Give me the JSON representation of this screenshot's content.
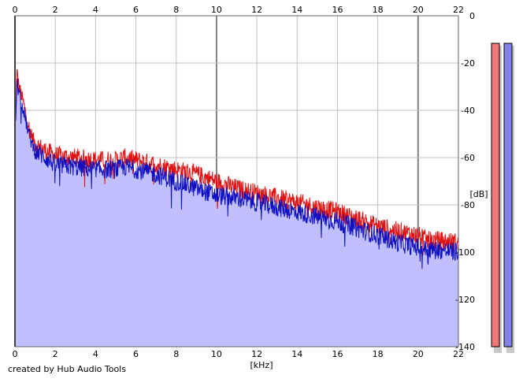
{
  "credit": "created by Hub Audio Tools",
  "chart_data": {
    "type": "area",
    "title": "",
    "xlabel": "[kHz]",
    "ylabel": "[dB]",
    "xlim": [
      0,
      22
    ],
    "ylim": [
      -140,
      0
    ],
    "x_ticks": [
      "0",
      "2",
      "4",
      "6",
      "8",
      "10",
      "12",
      "14",
      "16",
      "18",
      "20",
      "22"
    ],
    "y_ticks": [
      "0",
      "-20",
      "-40",
      "-60",
      "-80",
      "-100",
      "-120",
      "-140"
    ],
    "grid": true,
    "series": [
      {
        "color": "#e01010",
        "x": [
          0,
          0.1,
          0.2,
          0.4,
          0.6,
          0.8,
          1.0,
          1.5,
          2.0,
          3.0,
          4.0,
          5.0,
          5.5,
          6.0,
          7.0,
          8.0,
          9.0,
          10.0,
          11.0,
          12.0,
          13.0,
          14.0,
          15.0,
          16.0,
          17.0,
          18.0,
          19.0,
          20.0,
          20.5,
          21.0,
          22.0
        ],
        "values": [
          -50,
          -24,
          -30,
          -36,
          -44,
          -50,
          -54,
          -57,
          -59,
          -60,
          -61,
          -61,
          -60,
          -61,
          -63,
          -65,
          -67,
          -70,
          -73,
          -75,
          -77,
          -79,
          -81,
          -83,
          -86,
          -89,
          -91,
          -93,
          -95,
          -95,
          -96
        ]
      },
      {
        "color": "#1010c0",
        "x": [
          0,
          0.1,
          0.2,
          0.4,
          0.6,
          0.8,
          1.0,
          1.5,
          2.0,
          3.0,
          4.0,
          5.0,
          5.5,
          6.0,
          7.0,
          8.0,
          9.0,
          10.0,
          11.0,
          12.0,
          13.0,
          14.0,
          15.0,
          16.0,
          17.0,
          18.0,
          19.0,
          20.0,
          20.5,
          21.0,
          22.0
        ],
        "values": [
          -52,
          -28,
          -33,
          -39,
          -47,
          -53,
          -57,
          -60,
          -63,
          -64,
          -65,
          -65,
          -64,
          -65,
          -67,
          -70,
          -73,
          -76,
          -77,
          -79,
          -81,
          -83,
          -85,
          -87,
          -90,
          -93,
          -96,
          -98,
          -99,
          -99,
          -100
        ]
      }
    ],
    "fill_color": "#c0c0ff",
    "level_meters": [
      {
        "channel": "left",
        "color": "#f07878"
      },
      {
        "channel": "right",
        "color": "#8080e8"
      }
    ]
  }
}
